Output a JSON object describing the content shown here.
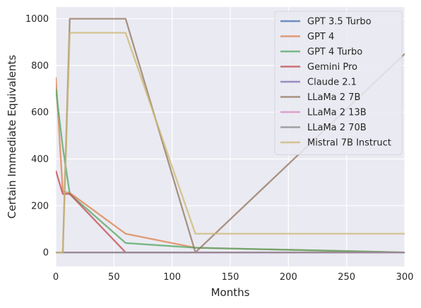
{
  "chart_data": {
    "type": "line",
    "title": "",
    "xlabel": "Months",
    "ylabel": "Certain Immediate Equivalents",
    "xlim": [
      0,
      300
    ],
    "ylim": [
      -60,
      1050
    ],
    "xticks": [
      0,
      50,
      100,
      150,
      200,
      250,
      300
    ],
    "yticks": [
      0,
      200,
      400,
      600,
      800,
      1000
    ],
    "grid": true,
    "legend_position": "top-right",
    "background": "#eaeaf2",
    "series": [
      {
        "name": "GPT 3.5 Turbo",
        "color": "#4c72b0",
        "points": [
          [
            0,
            0
          ],
          [
            6,
            0
          ],
          [
            12,
            0
          ],
          [
            60,
            0
          ],
          [
            120,
            0
          ],
          [
            300,
            0
          ]
        ]
      },
      {
        "name": "GPT 4",
        "color": "#dd8452",
        "points": [
          [
            0,
            750
          ],
          [
            6,
            260
          ],
          [
            12,
            255
          ],
          [
            60,
            80
          ],
          [
            120,
            20
          ],
          [
            300,
            0
          ]
        ]
      },
      {
        "name": "GPT 4 Turbo",
        "color": "#55a868",
        "points": [
          [
            0,
            700
          ],
          [
            6,
            450
          ],
          [
            12,
            250
          ],
          [
            60,
            40
          ],
          [
            120,
            20
          ],
          [
            300,
            0
          ]
        ]
      },
      {
        "name": "Gemini Pro",
        "color": "#c44e52",
        "points": [
          [
            0,
            350
          ],
          [
            6,
            250
          ],
          [
            12,
            250
          ],
          [
            60,
            0
          ],
          [
            120,
            0
          ],
          [
            300,
            0
          ]
        ]
      },
      {
        "name": "Claude 2.1",
        "color": "#8172b3",
        "points": [
          [
            0,
            0
          ],
          [
            6,
            0
          ],
          [
            12,
            0
          ],
          [
            60,
            0
          ],
          [
            120,
            0
          ],
          [
            300,
            0
          ]
        ]
      },
      {
        "name": "LLaMa 2 7B",
        "color": "#937860",
        "points": [
          [
            0,
            0
          ],
          [
            6,
            0
          ],
          [
            12,
            1000
          ],
          [
            60,
            1000
          ],
          [
            120,
            0
          ],
          [
            300,
            850
          ]
        ]
      },
      {
        "name": "LLaMa 2 13B",
        "color": "#da8bc3",
        "points": [
          [
            0,
            0
          ],
          [
            6,
            0
          ],
          [
            12,
            0
          ],
          [
            60,
            0
          ],
          [
            120,
            0
          ],
          [
            300,
            0
          ]
        ]
      },
      {
        "name": "LLaMa 2 70B",
        "color": "#8c8c8c",
        "points": [
          [
            0,
            0
          ],
          [
            6,
            0
          ],
          [
            12,
            0
          ],
          [
            60,
            0
          ],
          [
            120,
            0
          ],
          [
            300,
            0
          ]
        ]
      },
      {
        "name": "Mistral 7B Instruct",
        "color": "#ccb974",
        "points": [
          [
            0,
            0
          ],
          [
            6,
            0
          ],
          [
            12,
            940
          ],
          [
            60,
            940
          ],
          [
            120,
            80
          ],
          [
            300,
            80
          ]
        ]
      }
    ],
    "legend_colors": [
      "#4c72b0",
      "#dd8452",
      "#55a868",
      "#c44e52",
      "#8172b3",
      "#937860",
      "#da8bc3",
      "#8c8c8c",
      "#ccb974"
    ]
  }
}
